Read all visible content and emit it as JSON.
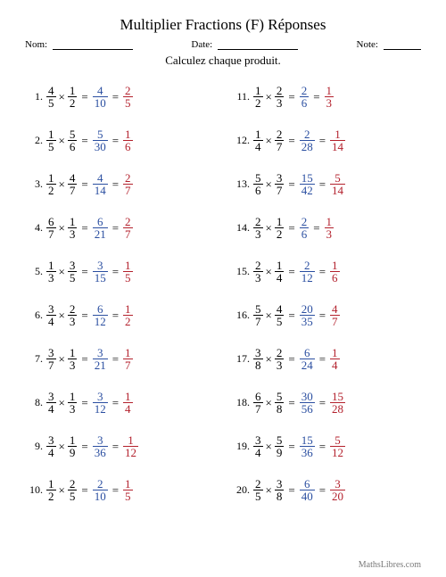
{
  "title": "Multiplier Fractions (F) Réponses",
  "header": {
    "name_label": "Nom:",
    "date_label": "Date:",
    "note_label": "Note:"
  },
  "subtitle": "Calculez chaque produit.",
  "footer": "MathsLibres.com",
  "colors": {
    "problem": "#000000",
    "intermediate": "#2a4ea0",
    "answer": "#b3202c"
  },
  "times": "×",
  "equals": "=",
  "problems": [
    {
      "n": 1,
      "a": [
        4,
        5
      ],
      "b": [
        1,
        2
      ],
      "m": [
        4,
        10
      ],
      "r": [
        2,
        5
      ]
    },
    {
      "n": 2,
      "a": [
        1,
        5
      ],
      "b": [
        5,
        6
      ],
      "m": [
        5,
        30
      ],
      "r": [
        1,
        6
      ]
    },
    {
      "n": 3,
      "a": [
        1,
        2
      ],
      "b": [
        4,
        7
      ],
      "m": [
        4,
        14
      ],
      "r": [
        2,
        7
      ]
    },
    {
      "n": 4,
      "a": [
        6,
        7
      ],
      "b": [
        1,
        3
      ],
      "m": [
        6,
        21
      ],
      "r": [
        2,
        7
      ]
    },
    {
      "n": 5,
      "a": [
        1,
        3
      ],
      "b": [
        3,
        5
      ],
      "m": [
        3,
        15
      ],
      "r": [
        1,
        5
      ]
    },
    {
      "n": 6,
      "a": [
        3,
        4
      ],
      "b": [
        2,
        3
      ],
      "m": [
        6,
        12
      ],
      "r": [
        1,
        2
      ]
    },
    {
      "n": 7,
      "a": [
        3,
        7
      ],
      "b": [
        1,
        3
      ],
      "m": [
        3,
        21
      ],
      "r": [
        1,
        7
      ]
    },
    {
      "n": 8,
      "a": [
        3,
        4
      ],
      "b": [
        1,
        3
      ],
      "m": [
        3,
        12
      ],
      "r": [
        1,
        4
      ]
    },
    {
      "n": 9,
      "a": [
        3,
        4
      ],
      "b": [
        1,
        9
      ],
      "m": [
        3,
        36
      ],
      "r": [
        1,
        12
      ]
    },
    {
      "n": 10,
      "a": [
        1,
        2
      ],
      "b": [
        2,
        5
      ],
      "m": [
        2,
        10
      ],
      "r": [
        1,
        5
      ]
    },
    {
      "n": 11,
      "a": [
        1,
        2
      ],
      "b": [
        2,
        3
      ],
      "m": [
        2,
        6
      ],
      "r": [
        1,
        3
      ]
    },
    {
      "n": 12,
      "a": [
        1,
        4
      ],
      "b": [
        2,
        7
      ],
      "m": [
        2,
        28
      ],
      "r": [
        1,
        14
      ]
    },
    {
      "n": 13,
      "a": [
        5,
        6
      ],
      "b": [
        3,
        7
      ],
      "m": [
        15,
        42
      ],
      "r": [
        5,
        14
      ]
    },
    {
      "n": 14,
      "a": [
        2,
        3
      ],
      "b": [
        1,
        2
      ],
      "m": [
        2,
        6
      ],
      "r": [
        1,
        3
      ]
    },
    {
      "n": 15,
      "a": [
        2,
        3
      ],
      "b": [
        1,
        4
      ],
      "m": [
        2,
        12
      ],
      "r": [
        1,
        6
      ]
    },
    {
      "n": 16,
      "a": [
        5,
        7
      ],
      "b": [
        4,
        5
      ],
      "m": [
        20,
        35
      ],
      "r": [
        4,
        7
      ]
    },
    {
      "n": 17,
      "a": [
        3,
        8
      ],
      "b": [
        2,
        3
      ],
      "m": [
        6,
        24
      ],
      "r": [
        1,
        4
      ]
    },
    {
      "n": 18,
      "a": [
        6,
        7
      ],
      "b": [
        5,
        8
      ],
      "m": [
        30,
        56
      ],
      "r": [
        15,
        28
      ]
    },
    {
      "n": 19,
      "a": [
        3,
        4
      ],
      "b": [
        5,
        9
      ],
      "m": [
        15,
        36
      ],
      "r": [
        5,
        12
      ]
    },
    {
      "n": 20,
      "a": [
        2,
        5
      ],
      "b": [
        3,
        8
      ],
      "m": [
        6,
        40
      ],
      "r": [
        3,
        20
      ]
    }
  ]
}
